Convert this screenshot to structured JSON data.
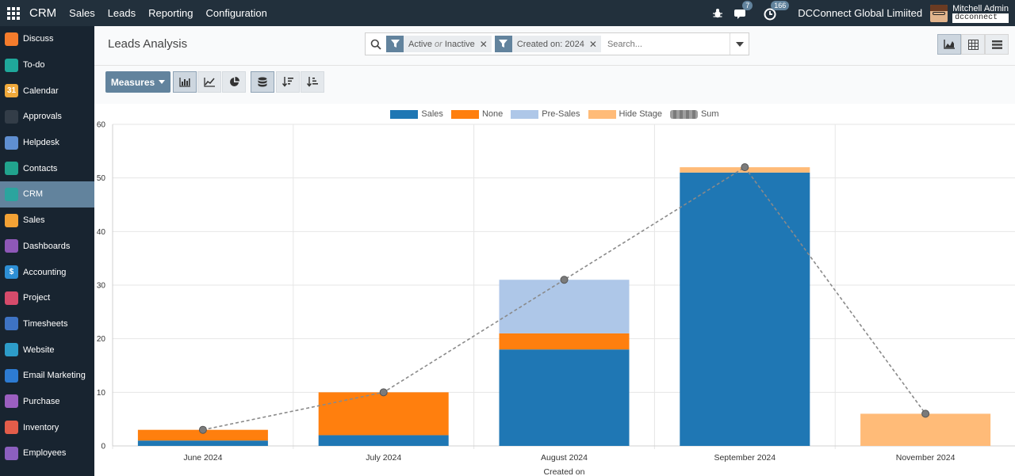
{
  "topbar": {
    "brand": "CRM",
    "menu": [
      "Sales",
      "Leads",
      "Reporting",
      "Configuration"
    ],
    "messages_count": "7",
    "activities_count": "166",
    "company": "DCConnect Global Limiited",
    "user_name": "Mitchell Admin",
    "database": "dcconnect"
  },
  "sidebar": {
    "items": [
      {
        "label": "Discuss",
        "icon": "discuss-icon",
        "color": "#f57c2c"
      },
      {
        "label": "To-do",
        "icon": "todo-icon",
        "color": "#1fa89b"
      },
      {
        "label": "Calendar",
        "icon": "calendar-icon",
        "color": "#f0a93b"
      },
      {
        "label": "Approvals",
        "icon": "approvals-icon",
        "color": "#333d48"
      },
      {
        "label": "Helpdesk",
        "icon": "helpdesk-icon",
        "color": "#5f8fd1"
      },
      {
        "label": "Contacts",
        "icon": "contacts-icon",
        "color": "#21a38d"
      },
      {
        "label": "CRM",
        "icon": "crm-icon",
        "color": "#2ba49e"
      },
      {
        "label": "Sales",
        "icon": "sales-icon",
        "color": "#f3a235"
      },
      {
        "label": "Dashboards",
        "icon": "dashboards-icon",
        "color": "#8e58b8"
      },
      {
        "label": "Accounting",
        "icon": "accounting-icon",
        "color": "#2d8fd5"
      },
      {
        "label": "Project",
        "icon": "project-icon",
        "color": "#d64b6b"
      },
      {
        "label": "Timesheets",
        "icon": "timesheets-icon",
        "color": "#3e73c4"
      },
      {
        "label": "Website",
        "icon": "website-icon",
        "color": "#2d9cc9"
      },
      {
        "label": "Email Marketing",
        "icon": "email-marketing-icon",
        "color": "#2d7bd2"
      },
      {
        "label": "Purchase",
        "icon": "purchase-icon",
        "color": "#9b5fc0"
      },
      {
        "label": "Inventory",
        "icon": "inventory-icon",
        "color": "#e35d4a"
      },
      {
        "label": "Employees",
        "icon": "employees-icon",
        "color": "#8b5fbf"
      }
    ],
    "active_index": 6
  },
  "control_panel": {
    "title": "Leads Analysis",
    "facets": [
      {
        "text_a": "Active",
        "text_or": "or",
        "text_b": "Inactive"
      },
      {
        "text": "Created on: 2024"
      }
    ],
    "search_placeholder": "Search...",
    "measures_label": "Measures"
  },
  "chart_data": {
    "type": "bar",
    "stacked": true,
    "categories": [
      "June 2024",
      "July 2024",
      "August 2024",
      "September 2024",
      "November 2024"
    ],
    "series": [
      {
        "name": "Sales",
        "color": "#1f77b4",
        "values": [
          1,
          2,
          18,
          51,
          0
        ]
      },
      {
        "name": "None",
        "color": "#ff7f0e",
        "values": [
          2,
          8,
          3,
          0,
          0
        ]
      },
      {
        "name": "Pre-Sales",
        "color": "#aec7e8",
        "values": [
          0,
          0,
          10,
          0,
          0
        ]
      },
      {
        "name": "Hide Stage",
        "color": "#ffbb78",
        "values": [
          0,
          0,
          0,
          1,
          6
        ]
      }
    ],
    "line_series": {
      "name": "Sum",
      "color": "#8a8a8a",
      "values": [
        3,
        10,
        31,
        52,
        6
      ]
    },
    "xlabel": "Created on",
    "ylabel": "",
    "ylim": [
      0,
      60
    ],
    "yticks": [
      "0",
      "10",
      "20",
      "30",
      "40",
      "50",
      "60"
    ],
    "grid": true,
    "legend": "top-center"
  }
}
